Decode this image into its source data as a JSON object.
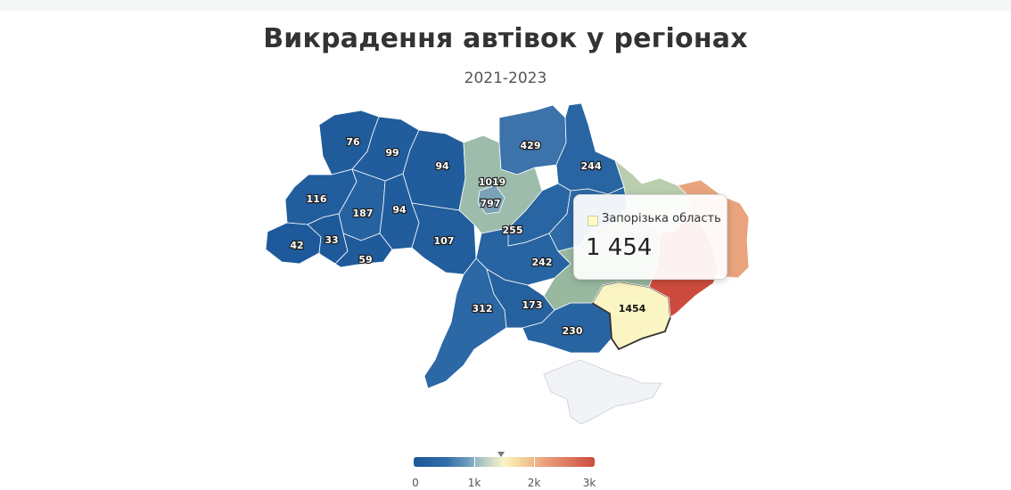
{
  "title": "Викрадення автівок у регіонах",
  "subtitle": "2021-2023",
  "map": {
    "color_scale": {
      "min": 0,
      "max": 3000,
      "low_color": "#1c5899",
      "mid_color": "#fbf5c4",
      "high_color": "#cc4b3e"
    },
    "regions": [
      {
        "id": "volyn",
        "value": 76
      },
      {
        "id": "rivne",
        "value": 99
      },
      {
        "id": "zhytomyr",
        "value": 94
      },
      {
        "id": "lviv",
        "value": 116
      },
      {
        "id": "ternopil",
        "value": 187
      },
      {
        "id": "khmelnytskyi",
        "value": 94
      },
      {
        "id": "zakarpattia",
        "value": 42
      },
      {
        "id": "ivano-frankivsk",
        "value": 33
      },
      {
        "id": "chernivtsi",
        "value": 59
      },
      {
        "id": "vinnytsia",
        "value": 107
      },
      {
        "id": "kyiv-oblast",
        "value": 1019
      },
      {
        "id": "kyiv-city",
        "value": 797
      },
      {
        "id": "chernihiv",
        "value": 429
      },
      {
        "id": "sumy",
        "value": 244
      },
      {
        "id": "cherkasy",
        "value": 255
      },
      {
        "id": "poltava",
        "value": ""
      },
      {
        "id": "kirovohrad",
        "value": 242
      },
      {
        "id": "odesa",
        "value": 312
      },
      {
        "id": "mykolaiv",
        "value": 173
      },
      {
        "id": "kherson",
        "value": 230
      },
      {
        "id": "zaporizhzhia",
        "value": 1454
      },
      {
        "id": "dnipro",
        "value": ""
      },
      {
        "id": "kharkiv",
        "value": ""
      },
      {
        "id": "donetsk",
        "value": ""
      },
      {
        "id": "luhansk",
        "value": ""
      },
      {
        "id": "crimea",
        "value": ""
      }
    ]
  },
  "tooltip": {
    "region_name": "Запорізька область",
    "value": "1 454"
  },
  "legend": {
    "labels": [
      "0",
      "1k",
      "2k",
      "3k"
    ],
    "marker_value": 1454
  }
}
